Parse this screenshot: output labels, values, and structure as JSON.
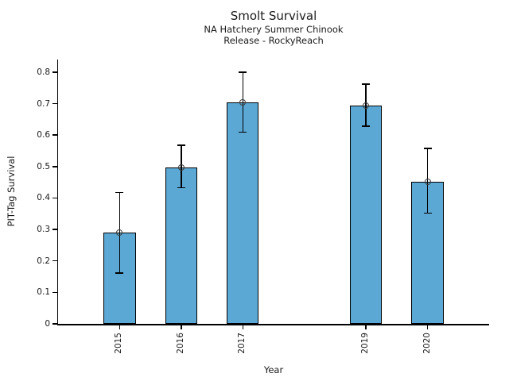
{
  "chart_data": {
    "type": "bar",
    "title": "Smolt Survival",
    "subtitles": [
      "NA Hatchery Summer Chinook",
      "Release - RockyReach"
    ],
    "xlabel": "Year",
    "ylabel": "PIT-Tag Survival",
    "categories": [
      "2015",
      "2016",
      "2017",
      "2019",
      "2020"
    ],
    "x_numeric": [
      2015,
      2016,
      2017,
      2019,
      2020
    ],
    "values": [
      0.289,
      0.497,
      0.703,
      0.694,
      0.452
    ],
    "error_low": [
      0.162,
      0.432,
      0.609,
      0.628,
      0.352
    ],
    "error_high": [
      0.417,
      0.567,
      0.8,
      0.762,
      0.557
    ],
    "xlim": [
      2014,
      2021
    ],
    "ylim": [
      0,
      0.84
    ],
    "yticks": [
      0,
      0.1,
      0.2,
      0.3,
      0.4,
      0.5,
      0.6,
      0.7,
      0.8
    ],
    "ytick_labels": [
      "0",
      "0.1",
      "0.2",
      "0.3",
      "0.4",
      "0.5",
      "0.6",
      "0.7",
      "0.8"
    ],
    "bar_width_years": 0.52,
    "grid": false,
    "legend": null,
    "missing_year": "2018",
    "bar_color": "#5BA8D5",
    "bar_edge_color": "#000000",
    "errorbar_color": "#000000",
    "marker": "open-circle",
    "marker_edge_color": "#3c3c3c",
    "text_color": "#1a1a1a",
    "background_color": "#ffffff"
  }
}
